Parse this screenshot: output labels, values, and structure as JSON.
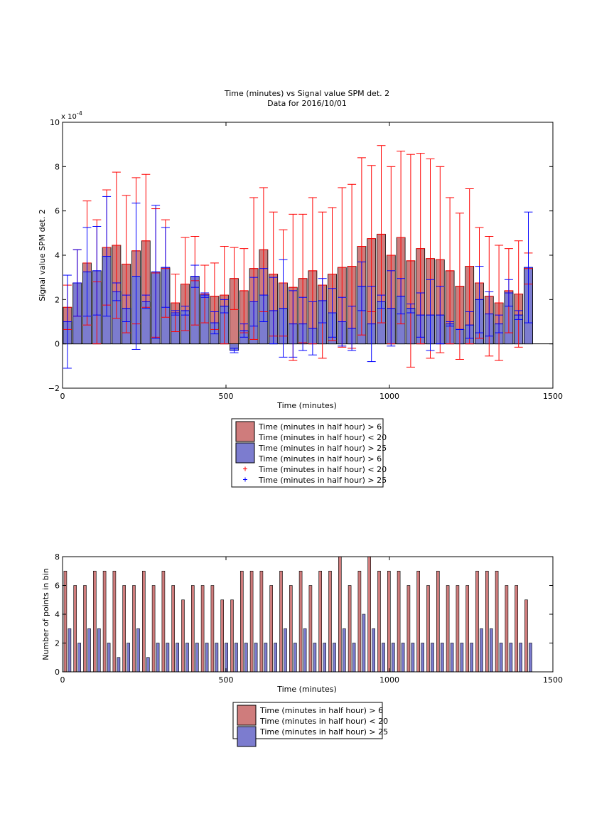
{
  "chart_data": [
    {
      "type": "bar",
      "title": "Time (minutes) vs Signal value SPM det. 2",
      "subtitle": "Data for 2016/10/01",
      "xlabel": "Time (minutes)",
      "ylabel": "Signal value SPM det. 2",
      "exponent_label": "x 10",
      "exponent_power": "-4",
      "xlim": [
        0,
        1500
      ],
      "ylim": [
        -2,
        10
      ],
      "xticks": [
        "0",
        "500",
        "1000",
        "1500"
      ],
      "yticks": [
        "−2",
        "0",
        "2",
        "4",
        "6",
        "8",
        "10"
      ],
      "grid": false,
      "legend_position": "below",
      "legend": [
        {
          "label": "Time (minutes in half hour) > 6",
          "swatch": "bar",
          "color": "#cf7c7c"
        },
        {
          "label": "Time (minutes in half hour) < 20",
          "swatch": "none",
          "color": ""
        },
        {
          "label": "Time (minutes in half hour) > 25",
          "swatch": "bar",
          "color": "#7c7ccf"
        },
        {
          "label": "Time (minutes in half hour) > 6",
          "swatch": "none",
          "color": ""
        },
        {
          "label": "Time (minutes in half hour) < 20",
          "swatch": "plus",
          "color": "#ff0000"
        },
        {
          "label": "Time (minutes in half hour) > 25",
          "swatch": "plus",
          "color": "#0000ff"
        }
      ],
      "colors": {
        "red_bar": "#cf7c7c",
        "blue_bar": "#7c7ccf",
        "red_err": "#ff0000",
        "blue_err": "#0000ff"
      },
      "x": [
        15,
        45,
        75,
        105,
        135,
        165,
        195,
        225,
        255,
        285,
        315,
        345,
        375,
        405,
        435,
        465,
        495,
        525,
        555,
        585,
        615,
        645,
        675,
        705,
        735,
        765,
        795,
        825,
        855,
        885,
        915,
        945,
        975,
        1005,
        1035,
        1065,
        1095,
        1125,
        1155,
        1185,
        1215,
        1245,
        1275,
        1305,
        1335,
        1365,
        1395,
        1425
      ],
      "series": [
        {
          "name": "Time (minutes in half hour) > 6",
          "values": [
            1.65,
            2.75,
            3.65,
            2.8,
            4.35,
            4.45,
            3.6,
            4.2,
            4.65,
            3.2,
            3.4,
            1.85,
            2.7,
            2.85,
            2.25,
            2.15,
            2.2,
            2.95,
            2.4,
            3.4,
            4.25,
            3.15,
            2.75,
            2.55,
            2.95,
            3.3,
            2.65,
            3.15,
            3.45,
            3.5,
            4.4,
            4.75,
            4.95,
            4.0,
            4.8,
            3.75,
            4.3,
            3.85,
            3.8,
            3.3,
            2.6,
            3.5,
            2.75,
            2.15,
            1.85,
            2.4,
            2.25,
            3.4
          ],
          "err": [
            1.0,
            1.5,
            2.8,
            2.8,
            2.6,
            3.3,
            3.1,
            3.3,
            3.0,
            2.9,
            2.2,
            1.3,
            2.1,
            2.0,
            1.3,
            1.5,
            2.2,
            1.4,
            1.9,
            3.2,
            2.8,
            2.8,
            2.4,
            3.3,
            2.9,
            3.3,
            3.3,
            3.0,
            3.6,
            3.7,
            4.0,
            3.3,
            4.0,
            4.0,
            3.9,
            4.8,
            4.3,
            4.5,
            4.2,
            3.3,
            3.3,
            3.5,
            2.5,
            2.7,
            2.6,
            1.9,
            2.4,
            0.7
          ]
        },
        {
          "name": "Time (minutes in half hour) > 25",
          "values": [
            1.0,
            2.75,
            3.25,
            3.3,
            3.95,
            2.35,
            1.6,
            3.05,
            1.9,
            3.25,
            3.45,
            1.4,
            1.5,
            3.05,
            2.2,
            0.95,
            1.7,
            -0.3,
            0.6,
            1.9,
            2.2,
            1.5,
            1.6,
            0.9,
            0.9,
            0.7,
            1.95,
            1.4,
            1.0,
            0.7,
            2.6,
            0.9,
            1.9,
            1.6,
            2.15,
            1.6,
            1.3,
            1.3,
            1.3,
            0.9,
            0.65,
            0.85,
            2.0,
            1.35,
            0.9,
            2.3,
            1.3,
            3.45
          ],
          "err": [
            2.1,
            1.5,
            2.0,
            2.0,
            2.7,
            0.4,
            0.6,
            3.3,
            0.3,
            3.0,
            1.8,
            0.1,
            0.2,
            0.5,
            0.1,
            0.5,
            0.3,
            0.1,
            0.3,
            1.1,
            1.2,
            1.5,
            2.2,
            1.5,
            1.2,
            1.2,
            1.0,
            1.1,
            1.1,
            1.0,
            1.1,
            1.7,
            0.3,
            1.7,
            0.8,
            0.2,
            1.0,
            1.6,
            1.3,
            0.1,
            0.0,
            0.6,
            1.5,
            1.0,
            0.4,
            0.6,
            0.2,
            2.5
          ]
        }
      ]
    },
    {
      "type": "bar",
      "xlabel": "Time (minutes)",
      "ylabel": "Number of points in bin",
      "xlim": [
        0,
        1500
      ],
      "ylim": [
        0,
        8
      ],
      "xticks": [
        "0",
        "500",
        "1000",
        "1500"
      ],
      "yticks": [
        "0",
        "2",
        "4",
        "6",
        "8"
      ],
      "grid": false,
      "legend_position": "below",
      "legend": [
        {
          "label": "Time (minutes in half hour) > 6",
          "swatch": "bar",
          "color": "#cf7c7c"
        },
        {
          "label": "Time (minutes in half hour) < 20",
          "swatch": "none",
          "color": ""
        },
        {
          "label": "Time (minutes in half hour) > 25",
          "swatch": "bar",
          "color": "#7c7ccf"
        }
      ],
      "x": [
        15,
        45,
        75,
        105,
        135,
        165,
        195,
        225,
        255,
        285,
        315,
        345,
        375,
        405,
        435,
        465,
        495,
        525,
        555,
        585,
        615,
        645,
        675,
        705,
        735,
        765,
        795,
        825,
        855,
        885,
        915,
        945,
        975,
        1005,
        1035,
        1065,
        1095,
        1125,
        1155,
        1185,
        1215,
        1245,
        1275,
        1305,
        1335,
        1365,
        1395,
        1425
      ],
      "series": [
        {
          "name": "Time (minutes in half hour) > 6",
          "values": [
            7,
            6,
            6,
            7,
            7,
            7,
            6,
            6,
            7,
            6,
            7,
            6,
            5,
            6,
            6,
            6,
            5,
            5,
            7,
            7,
            7,
            6,
            7,
            6,
            7,
            6,
            7,
            7,
            8,
            6,
            7,
            8,
            7,
            7,
            7,
            6,
            7,
            6,
            7,
            6,
            6,
            6,
            7,
            7,
            7,
            6,
            6,
            5
          ]
        },
        {
          "name": "Time (minutes in half hour) > 25",
          "values": [
            3,
            2,
            3,
            3,
            2,
            1,
            2,
            3,
            1,
            2,
            2,
            2,
            2,
            2,
            2,
            2,
            2,
            2,
            2,
            2,
            2,
            2,
            3,
            2,
            3,
            2,
            2,
            2,
            3,
            2,
            4,
            3,
            2,
            2,
            2,
            2,
            2,
            2,
            2,
            2,
            2,
            2,
            3,
            3,
            2,
            2,
            2,
            2
          ]
        }
      ]
    }
  ]
}
